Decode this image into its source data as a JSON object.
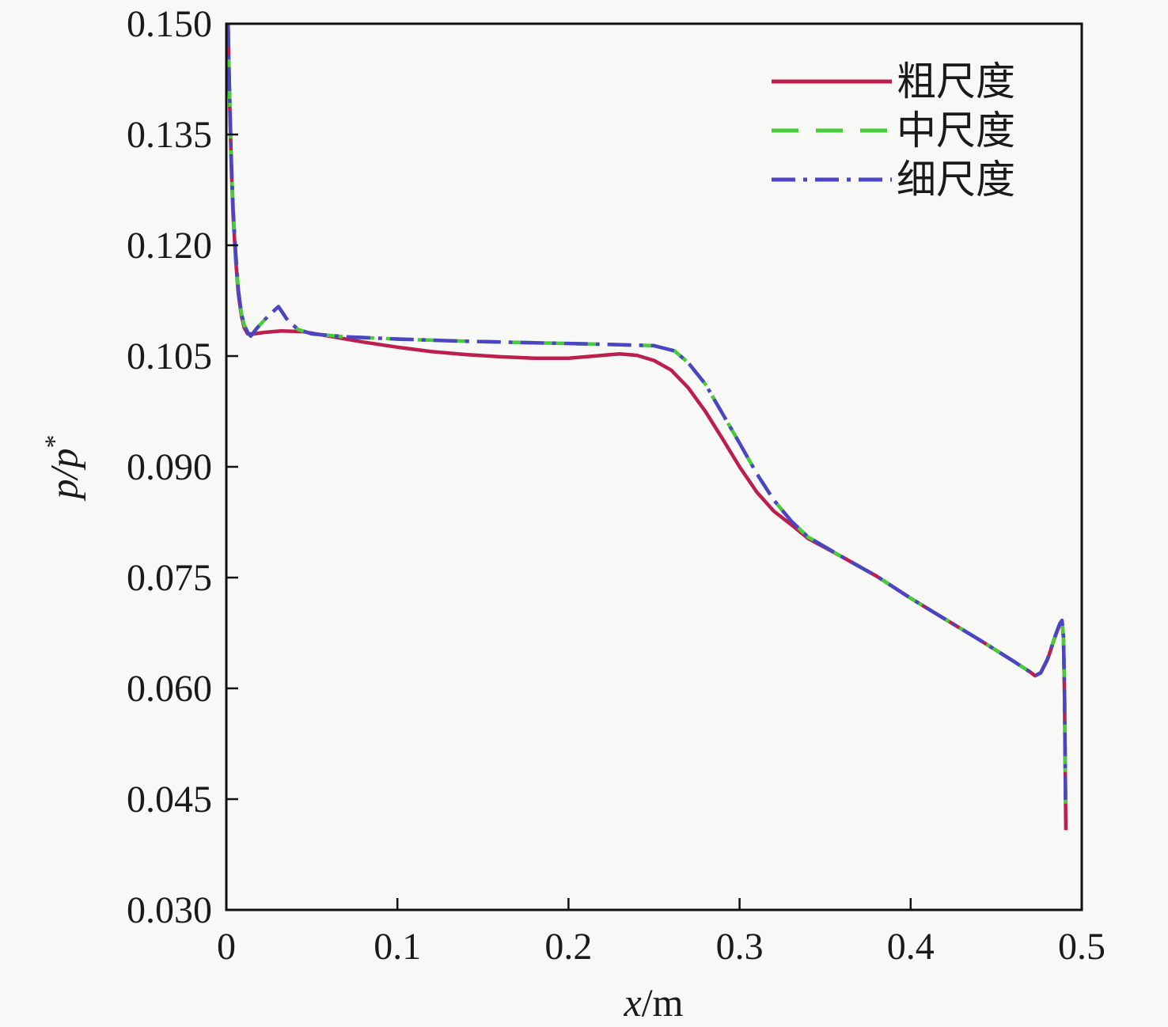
{
  "chart_data": {
    "type": "line",
    "title": "",
    "xlabel": {
      "symbol": "x",
      "unit": "/m"
    },
    "ylabel": {
      "symbol": "p/p",
      "sup": "*"
    },
    "xlim": [
      0,
      0.5
    ],
    "ylim": [
      0.03,
      0.15
    ],
    "grid": false,
    "legend_position": "upper-right",
    "axis_color": "#111111",
    "text_color": "#1a1a1a",
    "background": "#f8f8f6",
    "x_ticks": [
      {
        "v": 0,
        "label": "0"
      },
      {
        "v": 0.1,
        "label": "0.1"
      },
      {
        "v": 0.2,
        "label": "0.2"
      },
      {
        "v": 0.3,
        "label": "0.3"
      },
      {
        "v": 0.4,
        "label": "0.4"
      },
      {
        "v": 0.5,
        "label": "0.5"
      }
    ],
    "y_ticks": [
      {
        "v": 0.03,
        "label": "0.030"
      },
      {
        "v": 0.045,
        "label": "0.045"
      },
      {
        "v": 0.06,
        "label": "0.060"
      },
      {
        "v": 0.075,
        "label": "0.075"
      },
      {
        "v": 0.09,
        "label": "0.090"
      },
      {
        "v": 0.105,
        "label": "0.105"
      },
      {
        "v": 0.12,
        "label": "0.120"
      },
      {
        "v": 0.135,
        "label": "0.135"
      },
      {
        "v": 0.15,
        "label": "0.150"
      }
    ],
    "series": [
      {
        "name": "粗尺度",
        "color": "#bc1e4e",
        "style": "solid",
        "points": [
          [
            0.001,
            0.15
          ],
          [
            0.0015,
            0.144
          ],
          [
            0.0022,
            0.137
          ],
          [
            0.003,
            0.13
          ],
          [
            0.004,
            0.124
          ],
          [
            0.0055,
            0.118
          ],
          [
            0.007,
            0.1135
          ],
          [
            0.0088,
            0.1105
          ],
          [
            0.0105,
            0.1088
          ],
          [
            0.0125,
            0.108
          ],
          [
            0.016,
            0.108
          ],
          [
            0.022,
            0.1082
          ],
          [
            0.032,
            0.1084
          ],
          [
            0.045,
            0.1083
          ],
          [
            0.06,
            0.1077
          ],
          [
            0.08,
            0.1069
          ],
          [
            0.1,
            0.1062
          ],
          [
            0.12,
            0.1056
          ],
          [
            0.14,
            0.1052
          ],
          [
            0.16,
            0.1049
          ],
          [
            0.18,
            0.1047
          ],
          [
            0.2,
            0.1047
          ],
          [
            0.215,
            0.105
          ],
          [
            0.23,
            0.1053
          ],
          [
            0.24,
            0.1051
          ],
          [
            0.25,
            0.1044
          ],
          [
            0.26,
            0.1031
          ],
          [
            0.27,
            0.1007
          ],
          [
            0.28,
            0.0975
          ],
          [
            0.29,
            0.0938
          ],
          [
            0.3,
            0.09
          ],
          [
            0.31,
            0.0866
          ],
          [
            0.32,
            0.084
          ],
          [
            0.33,
            0.0822
          ],
          [
            0.34,
            0.0803
          ],
          [
            0.36,
            0.0778
          ],
          [
            0.38,
            0.0752
          ],
          [
            0.4,
            0.0722
          ],
          [
            0.42,
            0.0694
          ],
          [
            0.44,
            0.0666
          ],
          [
            0.46,
            0.0637
          ],
          [
            0.47,
            0.0622
          ],
          [
            0.4727,
            0.0617
          ],
          [
            0.476,
            0.0621
          ],
          [
            0.48,
            0.0639
          ],
          [
            0.484,
            0.0667
          ],
          [
            0.4872,
            0.0687
          ],
          [
            0.4885,
            0.069
          ],
          [
            0.4893,
            0.0668
          ],
          [
            0.4899,
            0.059
          ],
          [
            0.4903,
            0.05
          ],
          [
            0.4907,
            0.0408
          ]
        ]
      },
      {
        "name": "中尺度",
        "color": "#47cd3b",
        "style": "dashed",
        "points": [
          [
            0.001,
            0.15
          ],
          [
            0.0015,
            0.1445
          ],
          [
            0.0022,
            0.1378
          ],
          [
            0.003,
            0.1308
          ],
          [
            0.004,
            0.1248
          ],
          [
            0.0055,
            0.1188
          ],
          [
            0.007,
            0.114
          ],
          [
            0.0088,
            0.1108
          ],
          [
            0.0105,
            0.1092
          ],
          [
            0.0125,
            0.1082
          ],
          [
            0.0143,
            0.1077
          ],
          [
            0.018,
            0.1088
          ],
          [
            0.024,
            0.1103
          ],
          [
            0.0305,
            0.1117
          ],
          [
            0.036,
            0.1098
          ],
          [
            0.042,
            0.1086
          ],
          [
            0.05,
            0.108
          ],
          [
            0.07,
            0.1076
          ],
          [
            0.1,
            0.1073
          ],
          [
            0.14,
            0.107
          ],
          [
            0.18,
            0.1068
          ],
          [
            0.22,
            0.1066
          ],
          [
            0.25,
            0.1064
          ],
          [
            0.262,
            0.1057
          ],
          [
            0.27,
            0.1041
          ],
          [
            0.28,
            0.1012
          ],
          [
            0.29,
            0.0972
          ],
          [
            0.3,
            0.0932
          ],
          [
            0.31,
            0.0891
          ],
          [
            0.32,
            0.0855
          ],
          [
            0.33,
            0.0827
          ],
          [
            0.34,
            0.0805
          ],
          [
            0.36,
            0.0778
          ],
          [
            0.38,
            0.0752
          ],
          [
            0.4,
            0.0722
          ],
          [
            0.42,
            0.0694
          ],
          [
            0.44,
            0.0666
          ],
          [
            0.46,
            0.0637
          ],
          [
            0.47,
            0.0622
          ],
          [
            0.4727,
            0.0617
          ],
          [
            0.476,
            0.0621
          ],
          [
            0.48,
            0.064
          ],
          [
            0.484,
            0.0668
          ],
          [
            0.4872,
            0.0688
          ],
          [
            0.4885,
            0.0692
          ],
          [
            0.4893,
            0.067
          ],
          [
            0.4899,
            0.0595
          ],
          [
            0.4903,
            0.0505
          ],
          [
            0.4906,
            0.0428
          ]
        ]
      },
      {
        "name": "细尺度",
        "color": "#4b45c3",
        "style": "dashdot",
        "points": [
          [
            0.001,
            0.15
          ],
          [
            0.0015,
            0.1445
          ],
          [
            0.0022,
            0.1378
          ],
          [
            0.003,
            0.1308
          ],
          [
            0.004,
            0.1248
          ],
          [
            0.0055,
            0.1188
          ],
          [
            0.007,
            0.114
          ],
          [
            0.0088,
            0.1108
          ],
          [
            0.0105,
            0.1092
          ],
          [
            0.0125,
            0.1082
          ],
          [
            0.0143,
            0.1077
          ],
          [
            0.018,
            0.1088
          ],
          [
            0.024,
            0.1103
          ],
          [
            0.0305,
            0.1117
          ],
          [
            0.036,
            0.1098
          ],
          [
            0.042,
            0.1086
          ],
          [
            0.05,
            0.108
          ],
          [
            0.07,
            0.1076
          ],
          [
            0.1,
            0.1073
          ],
          [
            0.14,
            0.107
          ],
          [
            0.18,
            0.1068
          ],
          [
            0.22,
            0.1066
          ],
          [
            0.25,
            0.1064
          ],
          [
            0.262,
            0.1057
          ],
          [
            0.27,
            0.1041
          ],
          [
            0.28,
            0.1012
          ],
          [
            0.29,
            0.0972
          ],
          [
            0.3,
            0.0932
          ],
          [
            0.31,
            0.0891
          ],
          [
            0.32,
            0.0855
          ],
          [
            0.33,
            0.0827
          ],
          [
            0.34,
            0.0805
          ],
          [
            0.36,
            0.0778
          ],
          [
            0.38,
            0.0752
          ],
          [
            0.4,
            0.0722
          ],
          [
            0.42,
            0.0694
          ],
          [
            0.44,
            0.0666
          ],
          [
            0.46,
            0.0637
          ],
          [
            0.47,
            0.0622
          ],
          [
            0.4727,
            0.0617
          ],
          [
            0.476,
            0.0621
          ],
          [
            0.48,
            0.064
          ],
          [
            0.484,
            0.0668
          ],
          [
            0.4872,
            0.0688
          ],
          [
            0.4885,
            0.0692
          ],
          [
            0.4893,
            0.0671
          ],
          [
            0.4899,
            0.06
          ],
          [
            0.4903,
            0.0515
          ],
          [
            0.4905,
            0.0447
          ]
        ]
      }
    ]
  }
}
